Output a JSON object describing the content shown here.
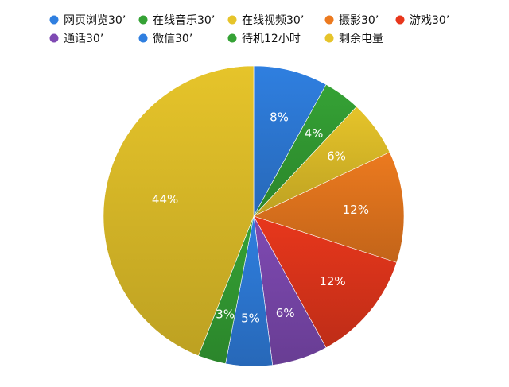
{
  "chart_data": {
    "type": "pie",
    "title": "",
    "legend_position": "top",
    "categories": [
      "网页浏览30’",
      "在线音乐30’",
      "在线视频30’",
      "摄影30’",
      "游戏30’",
      "通话30’",
      "微信30’",
      "待机12小时",
      "剩余电量"
    ],
    "values": [
      8,
      4,
      6,
      12,
      12,
      6,
      5,
      3,
      44
    ],
    "labels": [
      "8%",
      "4%",
      "6%",
      "12%",
      "12%",
      "6%",
      "5%",
      "3%",
      "44%"
    ],
    "colors": [
      "#2f7fe0",
      "#35a235",
      "#e6c42a",
      "#ec7a1f",
      "#e8371c",
      "#7f4ab3",
      "#2f7fe0",
      "#35a235",
      "#e6c42a"
    ]
  }
}
